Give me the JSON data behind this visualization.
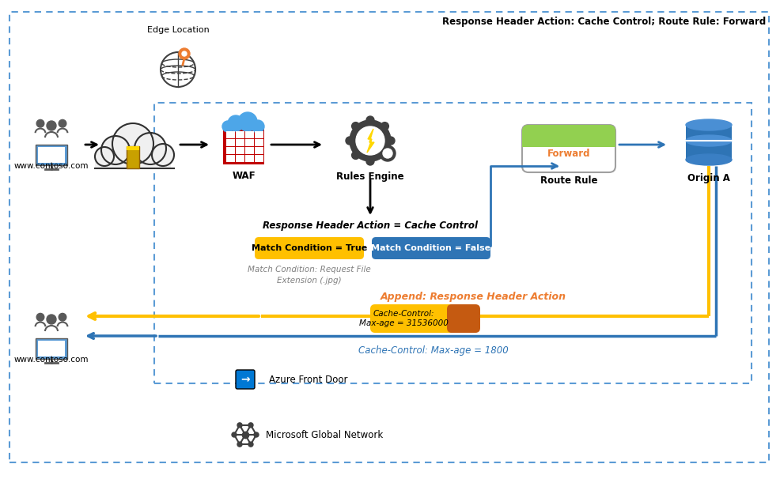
{
  "title": "Response Header Action: Cache Control; Route Rule: Forward",
  "bg_color": "#ffffff",
  "outer_border_color": "#5b9bd5",
  "inner_border_color": "#5b9bd5",
  "arrow_black": "#1a1a1a",
  "arrow_blue": "#2e74b5",
  "arrow_yellow": "#ffc000",
  "text_gray": "#808080",
  "text_orange": "#ed7d31",
  "text_blue": "#2e74b5",
  "match_true_bg": "#ffc000",
  "match_false_bg": "#2e74b5",
  "route_rule_green": "#92d050",
  "cache_control_yellow": "#ffc000",
  "cache_control_orange": "#c55a11",
  "labels": {
    "edge_location": "Edge Location",
    "www_contoso_top": "www.contoso.com",
    "www_contoso_bottom": "www.contoso.com",
    "waf": "WAF",
    "rules_engine": "Rules Engine",
    "route_rule": "Route Rule",
    "origin_a": "Origin A",
    "azure_front_door": "Azure Front Door",
    "microsoft_global_network": "Microsoft Global Network",
    "response_header_action": "Response Header Action = Cache Control",
    "match_true": "Match Condition = True",
    "match_false": "Match Condition = False",
    "match_condition_note": "Match Condition: Request File\nExtension (.jpg)",
    "append_label": "Append: Response Header Action",
    "cache_control_box": "Cache-Control:\nMax-age = 31536000",
    "cache_control_bottom": "Cache-Control: Max-age = 1800",
    "forward": "Forward"
  }
}
